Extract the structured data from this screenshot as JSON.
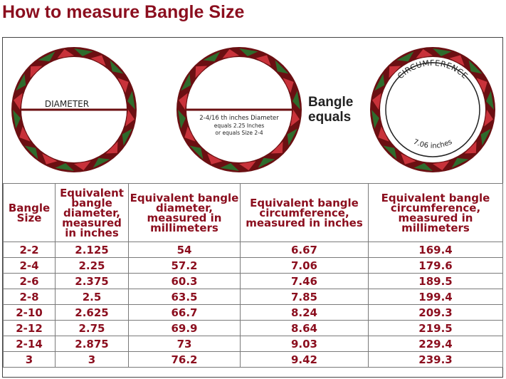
{
  "title": "How to measure Bangle Size",
  "diagrams": {
    "diameter_label": "DIAMETER",
    "note_line1": "2-4/16 th inches Diameter",
    "note_line2": "equals 2.25 Inches",
    "note_line3": "or equals Size 2-4",
    "equals_line1": "Bangle",
    "equals_line2": "equals",
    "circumference_label": "CIRCUMFERENCE",
    "circumference_value": "7.06 inches"
  },
  "colors": {
    "title": "#8b0e1e",
    "ring_dark": "#6b0f12",
    "ring_red": "#c8323a",
    "ring_green": "#2e6b2c"
  },
  "table": {
    "headers": [
      "Bangle Size",
      "Equivalent bangle diameter, measured in inches",
      "Equivalent bangle diameter, measured in millimeters",
      "Equivalent bangle circumference, measured in inches",
      "Equivalent bangle circumference, measured in millimeters"
    ],
    "rows": [
      [
        "2-2",
        "2.125",
        "54",
        "6.67",
        "169.4"
      ],
      [
        "2-4",
        "2.25",
        "57.2",
        "7.06",
        "179.6"
      ],
      [
        "2-6",
        "2.375",
        "60.3",
        "7.46",
        "189.5"
      ],
      [
        "2-8",
        "2.5",
        "63.5",
        "7.85",
        "199.4"
      ],
      [
        "2-10",
        "2.625",
        "66.7",
        "8.24",
        "209.3"
      ],
      [
        "2-12",
        "2.75",
        "69.9",
        "8.64",
        "219.5"
      ],
      [
        "2-14",
        "2.875",
        "73",
        "9.03",
        "229.4"
      ],
      [
        "3",
        "3",
        "76.2",
        "9.42",
        "239.3"
      ]
    ]
  }
}
